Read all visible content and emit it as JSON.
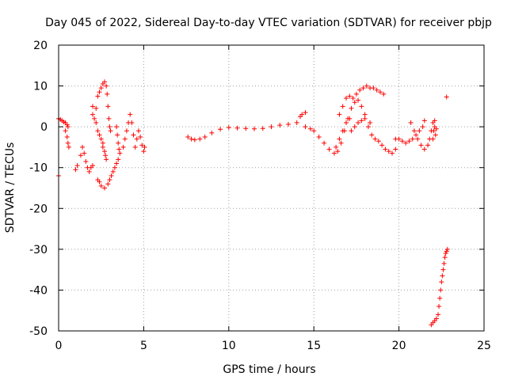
{
  "chart_data": {
    "type": "scatter",
    "title": "Day 045 of 2022, Sidereal Day-to-day VTEC variation (SDTVAR) for receiver pbjp",
    "xlabel": "GPS time / hours",
    "ylabel": "SDTVAR / TECUs",
    "xlim": [
      0,
      25
    ],
    "ylim": [
      -50,
      20
    ],
    "xticks": [
      0,
      5,
      10,
      15,
      20,
      25
    ],
    "yticks": [
      -50,
      -40,
      -30,
      -20,
      -10,
      0,
      10,
      20
    ],
    "grid": true,
    "marker": "plus",
    "color": "#ff0000",
    "series": [
      {
        "name": "pbjp",
        "points": [
          [
            0.0,
            -12.0
          ],
          [
            0.0,
            2.0
          ],
          [
            0.1,
            1.8
          ],
          [
            0.2,
            1.5
          ],
          [
            0.3,
            1.2
          ],
          [
            0.4,
            1.0
          ],
          [
            0.5,
            0.5
          ],
          [
            0.55,
            0.0
          ],
          [
            0.4,
            -1.0
          ],
          [
            0.5,
            -2.5
          ],
          [
            0.55,
            -4.0
          ],
          [
            0.6,
            -5.0
          ],
          [
            1.0,
            -10.5
          ],
          [
            1.1,
            -9.5
          ],
          [
            1.3,
            -7.0
          ],
          [
            1.4,
            -5.0
          ],
          [
            1.5,
            -6.5
          ],
          [
            1.6,
            -8.5
          ],
          [
            1.7,
            -10.0
          ],
          [
            1.8,
            -11.0
          ],
          [
            1.9,
            -10.0
          ],
          [
            2.0,
            -9.5
          ],
          [
            2.0,
            3.0
          ],
          [
            2.1,
            2.0
          ],
          [
            2.2,
            1.0
          ],
          [
            2.3,
            -1.0
          ],
          [
            2.4,
            -2.0
          ],
          [
            2.5,
            -3.0
          ],
          [
            2.6,
            -4.0
          ],
          [
            2.0,
            5.0
          ],
          [
            2.2,
            4.5
          ],
          [
            2.3,
            7.5
          ],
          [
            2.4,
            8.5
          ],
          [
            2.5,
            9.5
          ],
          [
            2.6,
            10.5
          ],
          [
            2.7,
            11.0
          ],
          [
            2.8,
            10.0
          ],
          [
            2.85,
            8.0
          ],
          [
            2.9,
            5.0
          ],
          [
            2.95,
            2.0
          ],
          [
            3.0,
            0.0
          ],
          [
            3.05,
            -1.0
          ],
          [
            2.6,
            -5.0
          ],
          [
            2.7,
            -6.0
          ],
          [
            2.75,
            -7.0
          ],
          [
            2.8,
            -8.0
          ],
          [
            2.7,
            -15.0
          ],
          [
            2.5,
            -14.5
          ],
          [
            2.4,
            -13.5
          ],
          [
            2.3,
            -13.0
          ],
          [
            2.9,
            -14.0
          ],
          [
            3.0,
            -13.0
          ],
          [
            3.1,
            -12.0
          ],
          [
            3.2,
            -11.0
          ],
          [
            3.3,
            -10.0
          ],
          [
            3.4,
            -9.0
          ],
          [
            3.5,
            -8.0
          ],
          [
            3.4,
            0.0
          ],
          [
            3.45,
            -2.0
          ],
          [
            3.5,
            -4.0
          ],
          [
            3.55,
            -5.5
          ],
          [
            3.6,
            -6.5
          ],
          [
            3.8,
            -5.0
          ],
          [
            3.9,
            -3.0
          ],
          [
            4.0,
            -1.0
          ],
          [
            4.1,
            1.0
          ],
          [
            4.2,
            3.0
          ],
          [
            4.3,
            1.0
          ],
          [
            4.4,
            -2.0
          ],
          [
            4.5,
            -5.0
          ],
          [
            4.6,
            -3.0
          ],
          [
            4.7,
            -1.0
          ],
          [
            4.8,
            -2.5
          ],
          [
            4.9,
            -4.5
          ],
          [
            5.0,
            -6.0
          ],
          [
            5.05,
            -5.0
          ],
          [
            7.6,
            -2.5
          ],
          [
            7.8,
            -3.0
          ],
          [
            8.0,
            -3.2
          ],
          [
            8.3,
            -3.0
          ],
          [
            8.6,
            -2.5
          ],
          [
            9.0,
            -1.5
          ],
          [
            9.5,
            -0.6
          ],
          [
            10.0,
            -0.2
          ],
          [
            10.5,
            -0.3
          ],
          [
            11.0,
            -0.4
          ],
          [
            11.5,
            -0.5
          ],
          [
            12.0,
            -0.4
          ],
          [
            12.5,
            0.0
          ],
          [
            13.0,
            0.4
          ],
          [
            13.5,
            0.6
          ],
          [
            14.0,
            1.0
          ],
          [
            14.3,
            3.0
          ],
          [
            14.5,
            3.5
          ],
          [
            14.2,
            2.5
          ],
          [
            14.5,
            0.0
          ],
          [
            14.8,
            -0.5
          ],
          [
            15.0,
            -1.0
          ],
          [
            15.3,
            -2.5
          ],
          [
            15.6,
            -4.0
          ],
          [
            15.9,
            -5.5
          ],
          [
            16.2,
            -6.5
          ],
          [
            16.4,
            -6.0
          ],
          [
            16.6,
            -4.0
          ],
          [
            16.8,
            -1.0
          ],
          [
            17.0,
            2.0
          ],
          [
            17.2,
            4.5
          ],
          [
            17.4,
            6.0
          ],
          [
            17.6,
            6.5
          ],
          [
            17.8,
            5.0
          ],
          [
            18.0,
            3.0
          ],
          [
            18.2,
            0.0
          ],
          [
            18.4,
            -2.0
          ],
          [
            18.6,
            -3.0
          ],
          [
            18.8,
            -3.5
          ],
          [
            19.0,
            -4.5
          ],
          [
            19.2,
            -5.5
          ],
          [
            19.4,
            -6.0
          ],
          [
            19.6,
            -6.5
          ],
          [
            19.8,
            -5.5
          ],
          [
            16.5,
            3.0
          ],
          [
            16.7,
            5.0
          ],
          [
            16.9,
            7.0
          ],
          [
            17.1,
            7.5
          ],
          [
            17.3,
            7.0
          ],
          [
            17.5,
            8.0
          ],
          [
            17.7,
            9.0
          ],
          [
            17.9,
            9.5
          ],
          [
            18.1,
            10.0
          ],
          [
            18.3,
            9.5
          ],
          [
            18.5,
            9.5
          ],
          [
            18.7,
            9.0
          ],
          [
            18.9,
            8.5
          ],
          [
            19.1,
            8.0
          ],
          [
            16.3,
            -5.0
          ],
          [
            16.5,
            -3.0
          ],
          [
            16.7,
            -1.0
          ],
          [
            16.9,
            1.0
          ],
          [
            17.1,
            2.0
          ],
          [
            17.2,
            -1.0
          ],
          [
            17.4,
            0.0
          ],
          [
            17.6,
            1.0
          ],
          [
            17.8,
            1.5
          ],
          [
            18.0,
            2.0
          ],
          [
            18.3,
            1.0
          ],
          [
            19.8,
            -3.0
          ],
          [
            20.0,
            -3.0
          ],
          [
            20.2,
            -3.5
          ],
          [
            20.4,
            -4.0
          ],
          [
            20.6,
            -3.5
          ],
          [
            20.8,
            -3.0
          ],
          [
            21.0,
            -2.0
          ],
          [
            21.2,
            -1.0
          ],
          [
            21.4,
            0.0
          ],
          [
            21.5,
            1.5
          ],
          [
            20.7,
            1.0
          ],
          [
            20.9,
            -1.0
          ],
          [
            21.1,
            -3.0
          ],
          [
            21.3,
            -4.5
          ],
          [
            21.5,
            -5.5
          ],
          [
            21.7,
            -4.5
          ],
          [
            21.8,
            -3.0
          ],
          [
            21.9,
            -1.0
          ],
          [
            22.0,
            1.0
          ],
          [
            22.1,
            1.5
          ],
          [
            22.0,
            -3.0
          ],
          [
            22.05,
            -1.0
          ],
          [
            22.1,
            0.0
          ],
          [
            22.15,
            -2.0
          ],
          [
            22.2,
            -0.5
          ],
          [
            22.8,
            7.3
          ],
          [
            21.9,
            -48.5
          ],
          [
            22.0,
            -48.0
          ],
          [
            22.1,
            -47.5
          ],
          [
            22.2,
            -47.0
          ],
          [
            22.3,
            -46.0
          ],
          [
            22.35,
            -44.0
          ],
          [
            22.4,
            -42.0
          ],
          [
            22.45,
            -40.0
          ],
          [
            22.5,
            -38.0
          ],
          [
            22.55,
            -36.5
          ],
          [
            22.6,
            -35.0
          ],
          [
            22.65,
            -33.5
          ],
          [
            22.7,
            -32.0
          ],
          [
            22.75,
            -31.0
          ],
          [
            22.8,
            -30.5
          ],
          [
            22.85,
            -30.0
          ]
        ]
      }
    ]
  }
}
